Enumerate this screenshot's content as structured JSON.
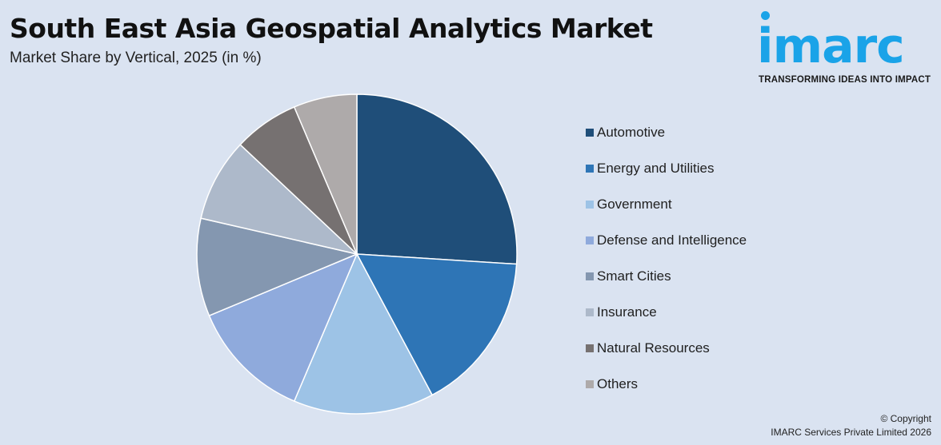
{
  "header": {
    "title": "South East Asia Geospatial Analytics Market",
    "subtitle": "Market Share by Vertical, 2025 (in %)"
  },
  "logo": {
    "word": "imarc",
    "tagline": "TRANSFORMING IDEAS INTO IMPACT",
    "color": "#1aa3e8"
  },
  "chart_data": {
    "type": "pie",
    "categories": [
      "Automotive",
      "Energy and Utilities",
      "Government",
      "Defense and Intelligence",
      "Smart Cities",
      "Insurance",
      "Natural Resources",
      "Others"
    ],
    "values": [
      26.0,
      16.2,
      14.2,
      12.3,
      9.9,
      8.4,
      6.6,
      6.4
    ],
    "colors": [
      "#1f4e79",
      "#2e75b6",
      "#9dc3e6",
      "#8faadc",
      "#8497b0",
      "#adb9ca",
      "#767171",
      "#aeaaaa"
    ],
    "start_angle_deg": 0,
    "direction": "clockwise",
    "legend_position": "right"
  },
  "footer": {
    "copyright_line1": "© Copyright",
    "copyright_line2": "IMARC Services Private Limited 2026"
  }
}
